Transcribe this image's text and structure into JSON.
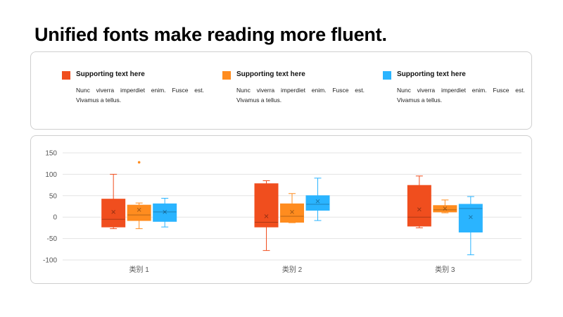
{
  "title": "Unified fonts make reading more fluent.",
  "legend_items": [
    {
      "title": "Supporting text here",
      "body": "Nunc viverra imperdiet enim. Fusce est. Vivamus a tellus.",
      "color": "#f04e1e"
    },
    {
      "title": "Supporting text here",
      "body": "Nunc viverra imperdiet enim. Fusce est. Vivamus a tellus.",
      "color": "#ff8c1f"
    },
    {
      "title": "Supporting text here",
      "body": "Nunc viverra imperdiet enim. Fusce est. Vivamus a tellus.",
      "color": "#2ab4ff"
    }
  ],
  "chart_data": {
    "type": "boxplot",
    "categories": [
      "类别 1",
      "类别 2",
      "类别 3"
    ],
    "ylim": [
      -100,
      150
    ],
    "yticks": [
      150,
      100,
      50,
      0,
      -50,
      -100
    ],
    "grid": true,
    "series": [
      {
        "color": "#f04e1e",
        "boxes": [
          {
            "min": -27,
            "q1": -23,
            "median": -5,
            "q3": 42,
            "max": 100,
            "mean": 12,
            "outliers": []
          },
          {
            "min": -78,
            "q1": -23,
            "median": -12,
            "q3": 78,
            "max": 85,
            "mean": 2,
            "outliers": []
          },
          {
            "min": -25,
            "q1": -21,
            "median": 0,
            "q3": 74,
            "max": 96,
            "mean": 18,
            "outliers": []
          }
        ]
      },
      {
        "color": "#ff8c1f",
        "boxes": [
          {
            "min": -27,
            "q1": -8,
            "median": 5,
            "q3": 28,
            "max": 33,
            "mean": 17,
            "outliers": [
              128
            ]
          },
          {
            "min": -13,
            "q1": -12,
            "median": 2,
            "q3": 31,
            "max": 55,
            "mean": 12,
            "outliers": []
          },
          {
            "min": 10,
            "q1": 12,
            "median": 17,
            "q3": 27,
            "max": 40,
            "mean": 20,
            "outliers": []
          }
        ]
      },
      {
        "color": "#2ab4ff",
        "boxes": [
          {
            "min": -23,
            "q1": -10,
            "median": 12,
            "q3": 31,
            "max": 44,
            "mean": 12,
            "outliers": []
          },
          {
            "min": -8,
            "q1": 16,
            "median": 30,
            "q3": 50,
            "max": 91,
            "mean": 37,
            "outliers": []
          },
          {
            "min": -88,
            "q1": -35,
            "median": 20,
            "q3": 30,
            "max": 48,
            "mean": 0,
            "outliers": []
          }
        ]
      }
    ]
  }
}
